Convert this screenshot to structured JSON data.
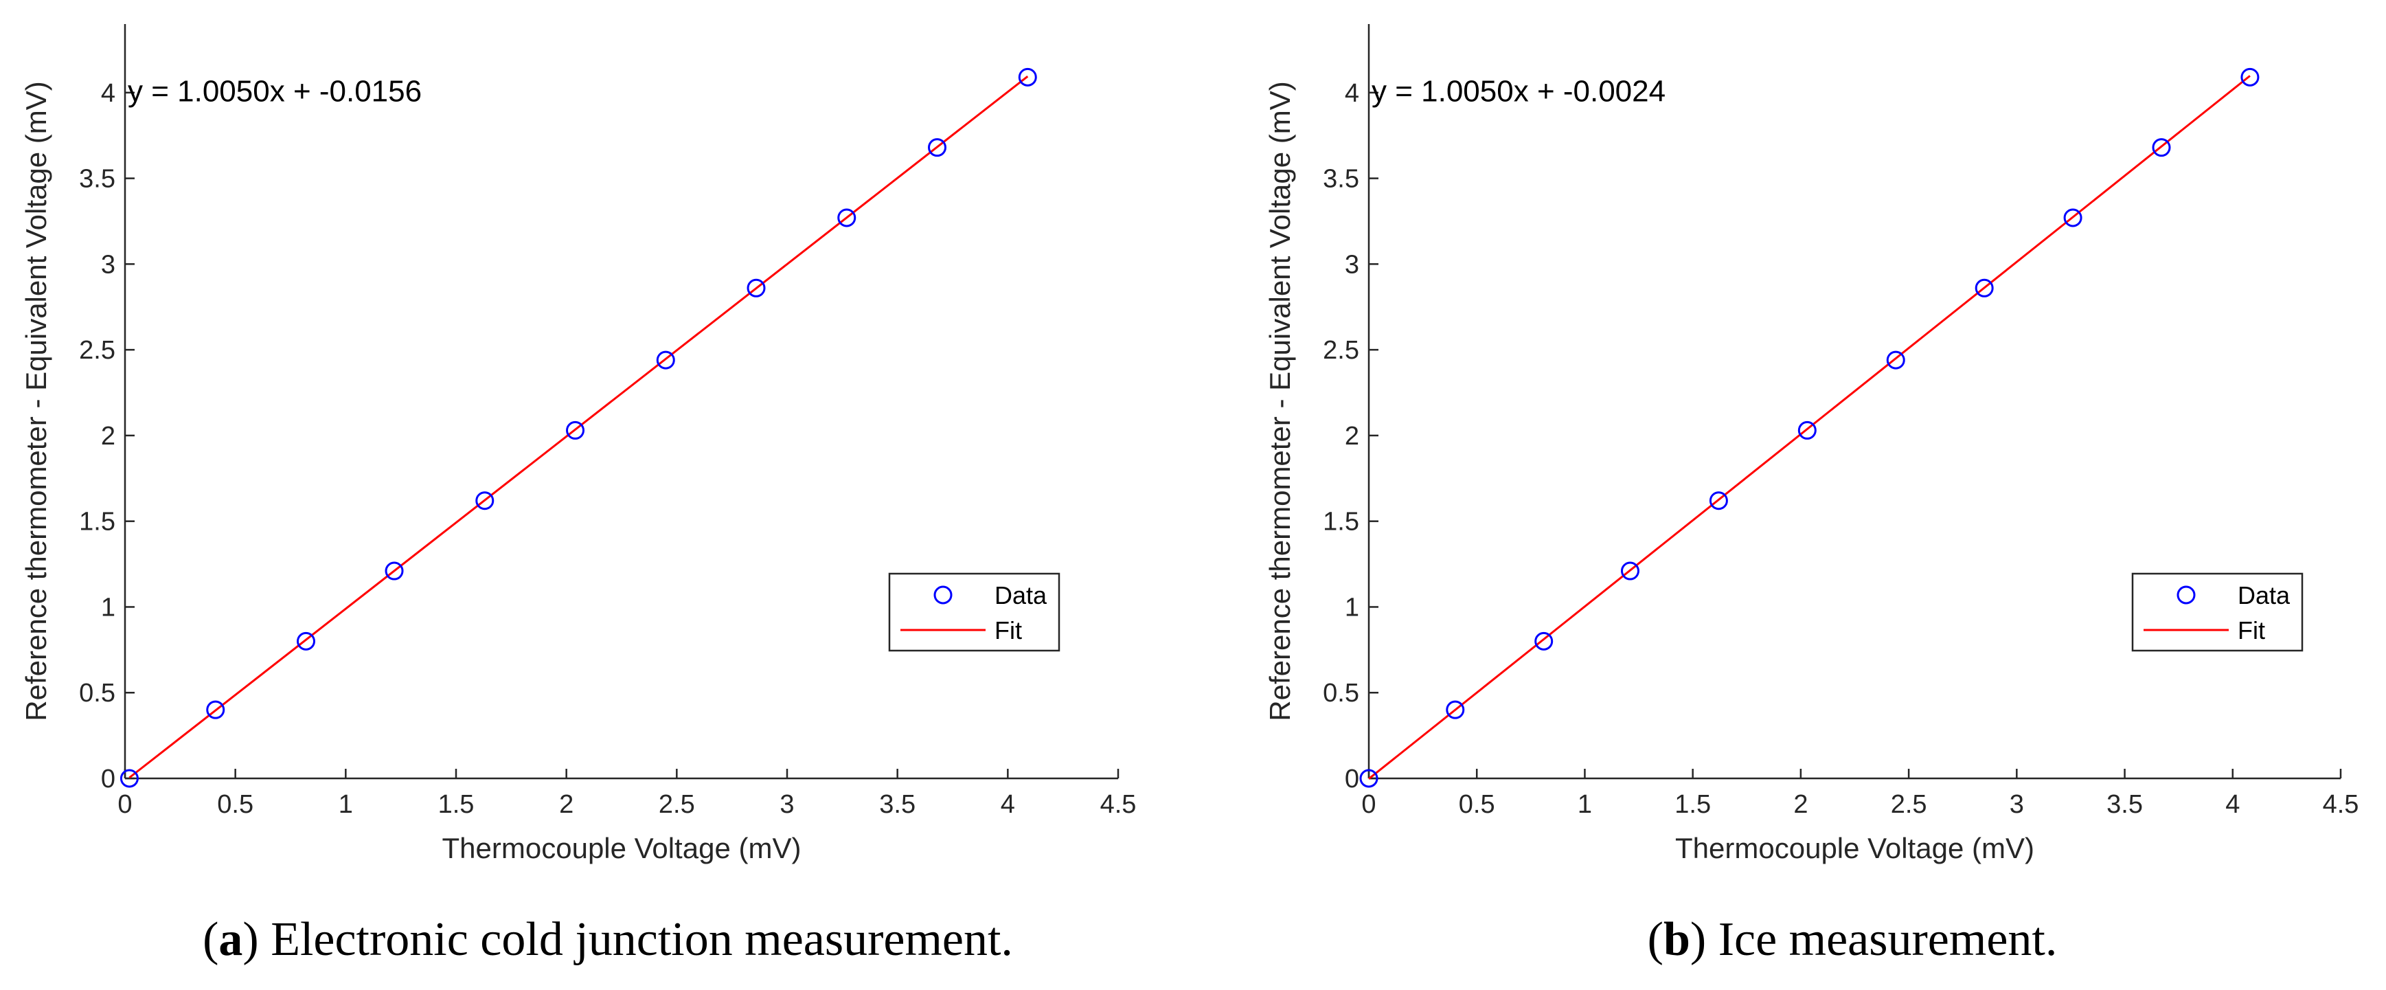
{
  "chart_data": [
    {
      "type": "scatter",
      "panel_letter": "a",
      "caption_text": "Electronic cold junction measurement.",
      "equation": "y = 1.0050x + -0.0156",
      "xlabel": "Thermocouple Voltage (mV)",
      "ylabel": "Reference thermometer - Equivalent Voltage (mV)",
      "xlim": [
        0,
        4.5
      ],
      "ylim": [
        0,
        4.4
      ],
      "xticks": [
        0,
        0.5,
        1,
        1.5,
        2,
        2.5,
        3,
        3.5,
        4,
        4.5
      ],
      "xtick_labels": [
        "0",
        "0.5",
        "1",
        "1.5",
        "2",
        "2.5",
        "3",
        "3.5",
        "4",
        "4.5"
      ],
      "yticks": [
        0,
        0.5,
        1,
        1.5,
        2,
        2.5,
        3,
        3.5,
        4
      ],
      "ytick_labels": [
        "0",
        "0.5",
        "1",
        "1.5",
        "2",
        "2.5",
        "3",
        "3.5",
        "4"
      ],
      "legend_position": "right",
      "series": [
        {
          "name": "Data",
          "marker": "circle",
          "color": "#0000ff",
          "x": [
            0.02,
            0.41,
            0.82,
            1.22,
            1.63,
            2.04,
            2.45,
            2.86,
            3.27,
            3.68,
            4.09
          ],
          "y": [
            0.0,
            0.4,
            0.8,
            1.21,
            1.62,
            2.03,
            2.44,
            2.86,
            3.27,
            3.68,
            4.09
          ]
        },
        {
          "name": "Fit",
          "line": "solid",
          "color": "#ff0000",
          "slope": 1.005,
          "intercept": -0.0156,
          "x_range": [
            0.02,
            4.09
          ]
        }
      ]
    },
    {
      "type": "scatter",
      "panel_letter": "b",
      "caption_text": "Ice measurement.",
      "equation": "y = 1.0050x + -0.0024",
      "xlabel": "Thermocouple Voltage (mV)",
      "ylabel": "Reference thermometer - Equivalent Voltage (mV)",
      "xlim": [
        0,
        4.5
      ],
      "ylim": [
        0,
        4.4
      ],
      "xticks": [
        0,
        0.5,
        1,
        1.5,
        2,
        2.5,
        3,
        3.5,
        4,
        4.5
      ],
      "xtick_labels": [
        "0",
        "0.5",
        "1",
        "1.5",
        "2",
        "2.5",
        "3",
        "3.5",
        "4",
        "4.5"
      ],
      "yticks": [
        0,
        0.5,
        1,
        1.5,
        2,
        2.5,
        3,
        3.5,
        4
      ],
      "ytick_labels": [
        "0",
        "0.5",
        "1",
        "1.5",
        "2",
        "2.5",
        "3",
        "3.5",
        "4"
      ],
      "legend_position": "right",
      "series": [
        {
          "name": "Data",
          "marker": "circle",
          "color": "#0000ff",
          "x": [
            0.0,
            0.4,
            0.81,
            1.21,
            1.62,
            2.03,
            2.44,
            2.85,
            3.26,
            3.67,
            4.08
          ],
          "y": [
            0.0,
            0.4,
            0.8,
            1.21,
            1.62,
            2.03,
            2.44,
            2.86,
            3.27,
            3.68,
            4.09
          ]
        },
        {
          "name": "Fit",
          "line": "solid",
          "color": "#ff0000",
          "slope": 1.005,
          "intercept": -0.0024,
          "x_range": [
            0.0,
            4.08
          ]
        }
      ]
    }
  ]
}
